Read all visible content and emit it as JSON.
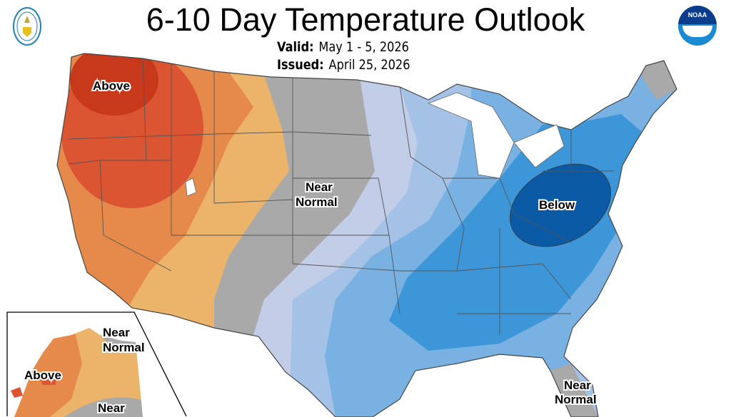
{
  "header": {
    "title": "6-10 Day Temperature Outlook",
    "valid_label": "Valid:",
    "valid_value": "May 1 - 5, 2026",
    "issued_label": "Issued:",
    "issued_value": "April 25, 2026"
  },
  "logos": {
    "left": "doc-seal-icon",
    "right": "noaa-logo-icon",
    "right_text": "NOAA"
  },
  "map_labels": {
    "above_nw": "Above",
    "near_normal_center_1": "Near",
    "near_normal_center_2": "Normal",
    "below_east": "Below",
    "near_normal_fl_1": "Near",
    "near_normal_fl_2": "Normal",
    "ak_above": "Above",
    "ak_near_normal_1": "Near",
    "ak_near_normal_2": "Normal",
    "ak_near_normal_s": "Near"
  },
  "colors": {
    "above_dark": "#c8391c",
    "above_mid": "#dc5532",
    "above_light": "#e68a4b",
    "above_lightest": "#ebb46a",
    "near_normal": "#a9a9a9",
    "below_lightest": "#c2cde8",
    "below_light": "#a3c2e6",
    "below_mid": "#78b1e2",
    "below_strong": "#3d96d8",
    "below_dark": "#0b5aa5"
  }
}
